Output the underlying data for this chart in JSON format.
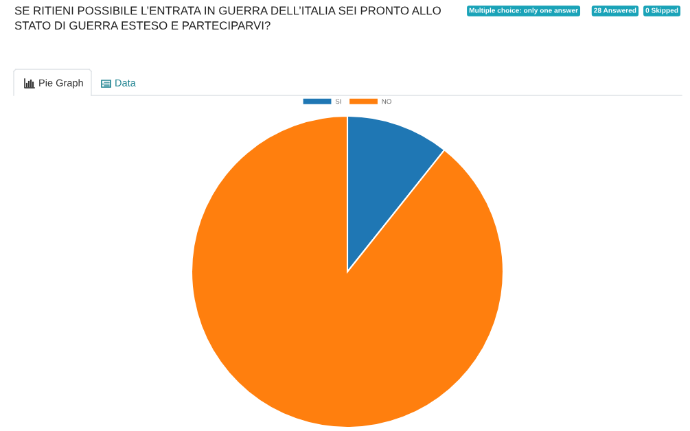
{
  "chart_data": {
    "type": "pie",
    "title": "SE RITIENI POSSIBILE L’ENTRATA IN GUERRA DELL’ITALIA SEI PRONTO ALLO\nSTATO DI GUERRA ESTESO E PARTECIPARVI?",
    "categories": [
      "SI",
      "NO"
    ],
    "values": [
      10.7,
      89.3
    ],
    "colors": [
      "#1f77b4",
      "#ff7f0e"
    ],
    "legend": "top",
    "annotations": [
      "Multiple choice: only one answer",
      "28 Answered",
      "0 Skipped",
      "Pie Graph",
      "Data"
    ]
  }
}
